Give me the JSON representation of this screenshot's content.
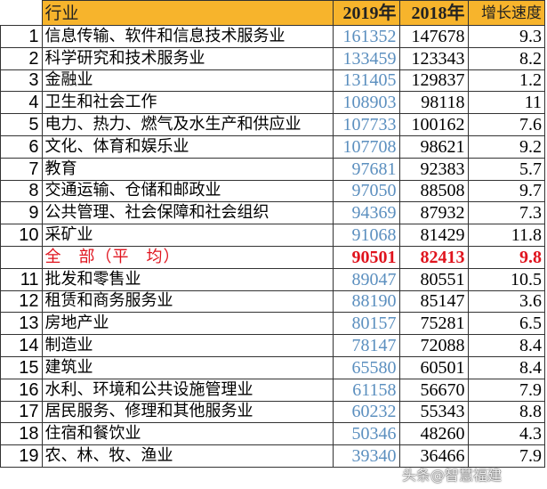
{
  "header": {
    "industry": "行业",
    "y2019": "2019年",
    "y2018": "2018年",
    "growth": "增长速度"
  },
  "rows": [
    {
      "rank": "1",
      "industry": "信息传输、软件和信息技术服务业",
      "y2019": "161352",
      "y2018": "147678",
      "growth": "9.3"
    },
    {
      "rank": "2",
      "industry": "科学研究和技术服务业",
      "y2019": "133459",
      "y2018": "123343",
      "growth": "8.2"
    },
    {
      "rank": "3",
      "industry": "金融业",
      "y2019": "131405",
      "y2018": "129837",
      "growth": "1.2"
    },
    {
      "rank": "4",
      "industry": "卫生和社会工作",
      "y2019": "108903",
      "y2018": "98118",
      "growth": "11"
    },
    {
      "rank": "5",
      "industry": "电力、热力、燃气及水生产和供应业",
      "y2019": "107733",
      "y2018": "100162",
      "growth": "7.6"
    },
    {
      "rank": "6",
      "industry": "文化、体育和娱乐业",
      "y2019": "107708",
      "y2018": "98621",
      "growth": "9.2"
    },
    {
      "rank": "7",
      "industry": "教育",
      "y2019": "97681",
      "y2018": "92383",
      "growth": "5.7"
    },
    {
      "rank": "8",
      "industry": "交通运输、仓储和邮政业",
      "y2019": "97050",
      "y2018": "88508",
      "growth": "9.7"
    },
    {
      "rank": "9",
      "industry": "公共管理、社会保障和社会组织",
      "y2019": "94369",
      "y2018": "87932",
      "growth": "7.3"
    },
    {
      "rank": "10",
      "industry": "采矿业",
      "y2019": "91068",
      "y2018": "81429",
      "growth": "11.8"
    },
    {
      "rank": "",
      "industry": "全　部（平　均）",
      "y2019": "90501",
      "y2018": "82413",
      "growth": "9.8",
      "avg": true
    },
    {
      "rank": "11",
      "industry": "批发和零售业",
      "y2019": "89047",
      "y2018": "80551",
      "growth": "10.5"
    },
    {
      "rank": "12",
      "industry": "租赁和商务服务业",
      "y2019": "88190",
      "y2018": "85147",
      "growth": "3.6"
    },
    {
      "rank": "13",
      "industry": "房地产业",
      "y2019": "80157",
      "y2018": "75281",
      "growth": "6.5"
    },
    {
      "rank": "14",
      "industry": "制造业",
      "y2019": "78147",
      "y2018": "72088",
      "growth": "8.4"
    },
    {
      "rank": "15",
      "industry": "建筑业",
      "y2019": "65580",
      "y2018": "60501",
      "growth": "8.4"
    },
    {
      "rank": "16",
      "industry": "水利、环境和公共设施管理业",
      "y2019": "61158",
      "y2018": "56670",
      "growth": "7.9"
    },
    {
      "rank": "17",
      "industry": "居民服务、修理和其他服务业",
      "y2019": "60232",
      "y2018": "55343",
      "growth": "8.8"
    },
    {
      "rank": "18",
      "industry": "住宿和餐饮业",
      "y2019": "50346",
      "y2018": "48260",
      "growth": "4.3"
    },
    {
      "rank": "19",
      "industry": "农、林、牧、渔业",
      "y2019": "39340",
      "y2018": "36466",
      "growth": "7.9"
    }
  ],
  "watermark": "头条@智慧福建",
  "colors": {
    "header_bg": "#f7b42c",
    "y2019_text": "#5b8fbf",
    "average_row": "#e0141e"
  }
}
